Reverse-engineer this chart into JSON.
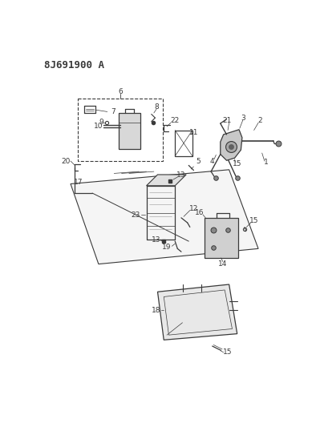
{
  "title": "8J691900 A",
  "bg": "#ffffff",
  "lc": "#3a3a3a",
  "title_fs": 9,
  "label_fs": 6.5
}
